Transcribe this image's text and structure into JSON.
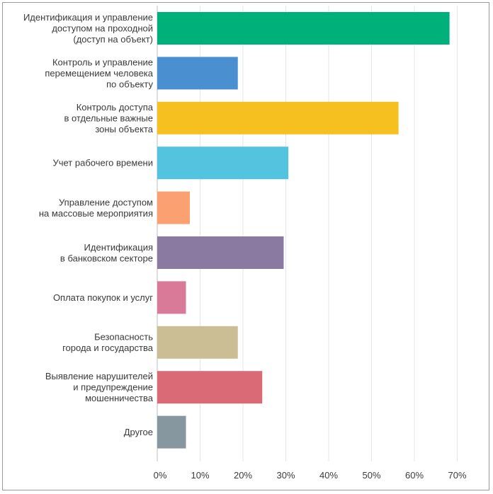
{
  "chart_data": {
    "type": "bar",
    "orientation": "horizontal",
    "title": "",
    "xlabel": "",
    "ylabel": "",
    "xlim": [
      0,
      75
    ],
    "grid": true,
    "x_ticks": [
      0,
      10,
      20,
      30,
      40,
      50,
      60,
      70
    ],
    "x_tick_labels": [
      "0%",
      "10%",
      "20%",
      "30%",
      "40%",
      "50%",
      "60%",
      "70%"
    ],
    "categories": [
      [
        "Идентификация и управление",
        "доступом на проходной",
        "(доступ на объект)"
      ],
      [
        "Контроль и управление",
        "перемещением человека",
        "по объекту"
      ],
      [
        "Контроль доступа",
        "в отдельные важные",
        "зоны объекта"
      ],
      [
        "Учет рабочего времени"
      ],
      [
        "Управление доступом",
        "на массовые мероприятия"
      ],
      [
        "Идентификация",
        "в банковском секторе"
      ],
      [
        "Оплата покупок и услуг"
      ],
      [
        "Безопасность",
        "города и государства"
      ],
      [
        "Выявление нарушителей",
        "и предупреждение",
        "мошенничества"
      ],
      [
        "Другое"
      ]
    ],
    "values": [
      68.2,
      18.8,
      56.3,
      30.6,
      7.6,
      29.5,
      6.7,
      18.8,
      24.5,
      6.7
    ],
    "colors": [
      "#00b07a",
      "#4a8fd0",
      "#f5c020",
      "#54c3e0",
      "#fba070",
      "#8a7aa2",
      "#d87a98",
      "#cbbe94",
      "#da6b76",
      "#8797a0"
    ]
  }
}
